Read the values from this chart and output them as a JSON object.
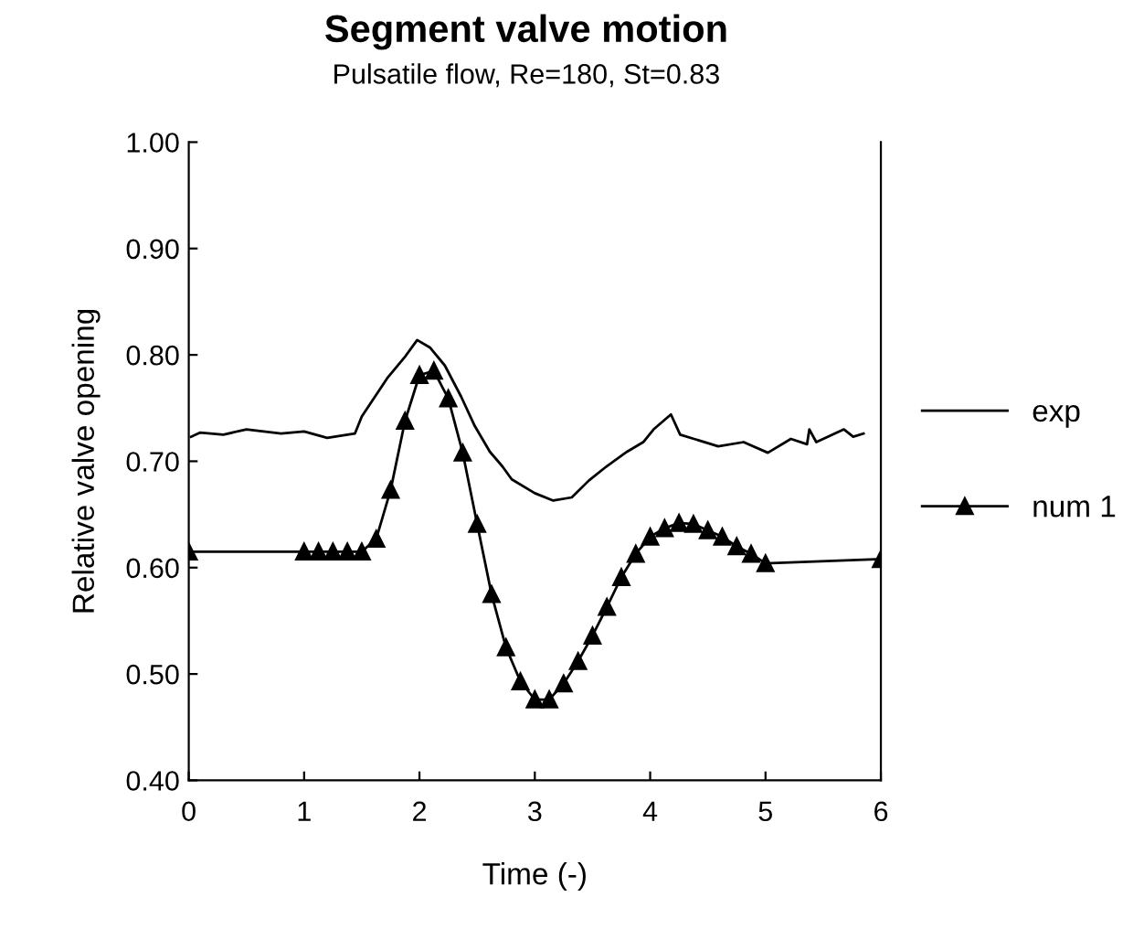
{
  "chart_data": {
    "type": "line",
    "title": "Segment valve motion",
    "subtitle": "Pulsatile flow, Re=180, St=0.83",
    "xlabel": "Time (-)",
    "ylabel": "Relative valve opening",
    "xlim": [
      0,
      6
    ],
    "xticks": [
      0,
      1,
      2,
      3,
      4,
      5,
      6
    ],
    "ylim": [
      0.4,
      1.0
    ],
    "yticks": [
      {
        "value": 0.4,
        "label": "0.40"
      },
      {
        "value": 0.5,
        "label": "0.50"
      },
      {
        "value": 0.6,
        "label": "0.60"
      },
      {
        "value": 0.7,
        "label": "0.70"
      },
      {
        "value": 0.8,
        "label": "0.80"
      },
      {
        "value": 0.9,
        "label": "0.90"
      },
      {
        "value": 1.0,
        "label": "1.00"
      }
    ],
    "grid": false,
    "legend": "right",
    "series": [
      {
        "name": "exp",
        "color": "#000000",
        "marker": "none",
        "x": [
          0.02,
          0.1,
          0.3,
          0.5,
          0.8,
          1.0,
          1.2,
          1.44,
          1.5,
          1.72,
          1.88,
          1.98,
          2.09,
          2.22,
          2.36,
          2.48,
          2.61,
          2.72,
          2.8,
          3.0,
          3.16,
          3.32,
          3.47,
          3.62,
          3.8,
          3.94,
          4.03,
          4.18,
          4.26,
          4.38,
          4.59,
          4.81,
          5.02,
          5.22,
          5.36,
          5.38,
          5.44,
          5.68,
          5.76,
          5.85
        ],
        "values": [
          0.723,
          0.727,
          0.725,
          0.73,
          0.726,
          0.728,
          0.722,
          0.726,
          0.742,
          0.778,
          0.799,
          0.814,
          0.807,
          0.79,
          0.761,
          0.733,
          0.709,
          0.695,
          0.683,
          0.67,
          0.663,
          0.666,
          0.682,
          0.695,
          0.709,
          0.718,
          0.73,
          0.744,
          0.725,
          0.721,
          0.714,
          0.718,
          0.708,
          0.721,
          0.716,
          0.73,
          0.718,
          0.73,
          0.723,
          0.726
        ]
      },
      {
        "name": "num 1",
        "color": "#000000",
        "marker": "triangle",
        "x": [
          0,
          1,
          1.125,
          1.25,
          1.375,
          1.5,
          1.625,
          1.75,
          1.875,
          2,
          2.125,
          2.25,
          2.375,
          2.5,
          2.625,
          2.75,
          2.875,
          3,
          3.125,
          3.25,
          3.375,
          3.5,
          3.625,
          3.75,
          3.875,
          4,
          4.125,
          4.25,
          4.375,
          4.5,
          4.625,
          4.75,
          4.875,
          5,
          6
        ],
        "values": [
          0.615,
          0.615,
          0.615,
          0.615,
          0.615,
          0.615,
          0.627,
          0.673,
          0.738,
          0.781,
          0.785,
          0.759,
          0.708,
          0.641,
          0.575,
          0.525,
          0.493,
          0.476,
          0.476,
          0.491,
          0.512,
          0.536,
          0.563,
          0.591,
          0.613,
          0.629,
          0.637,
          0.642,
          0.641,
          0.635,
          0.629,
          0.62,
          0.613,
          0.604,
          0.608
        ]
      }
    ]
  }
}
